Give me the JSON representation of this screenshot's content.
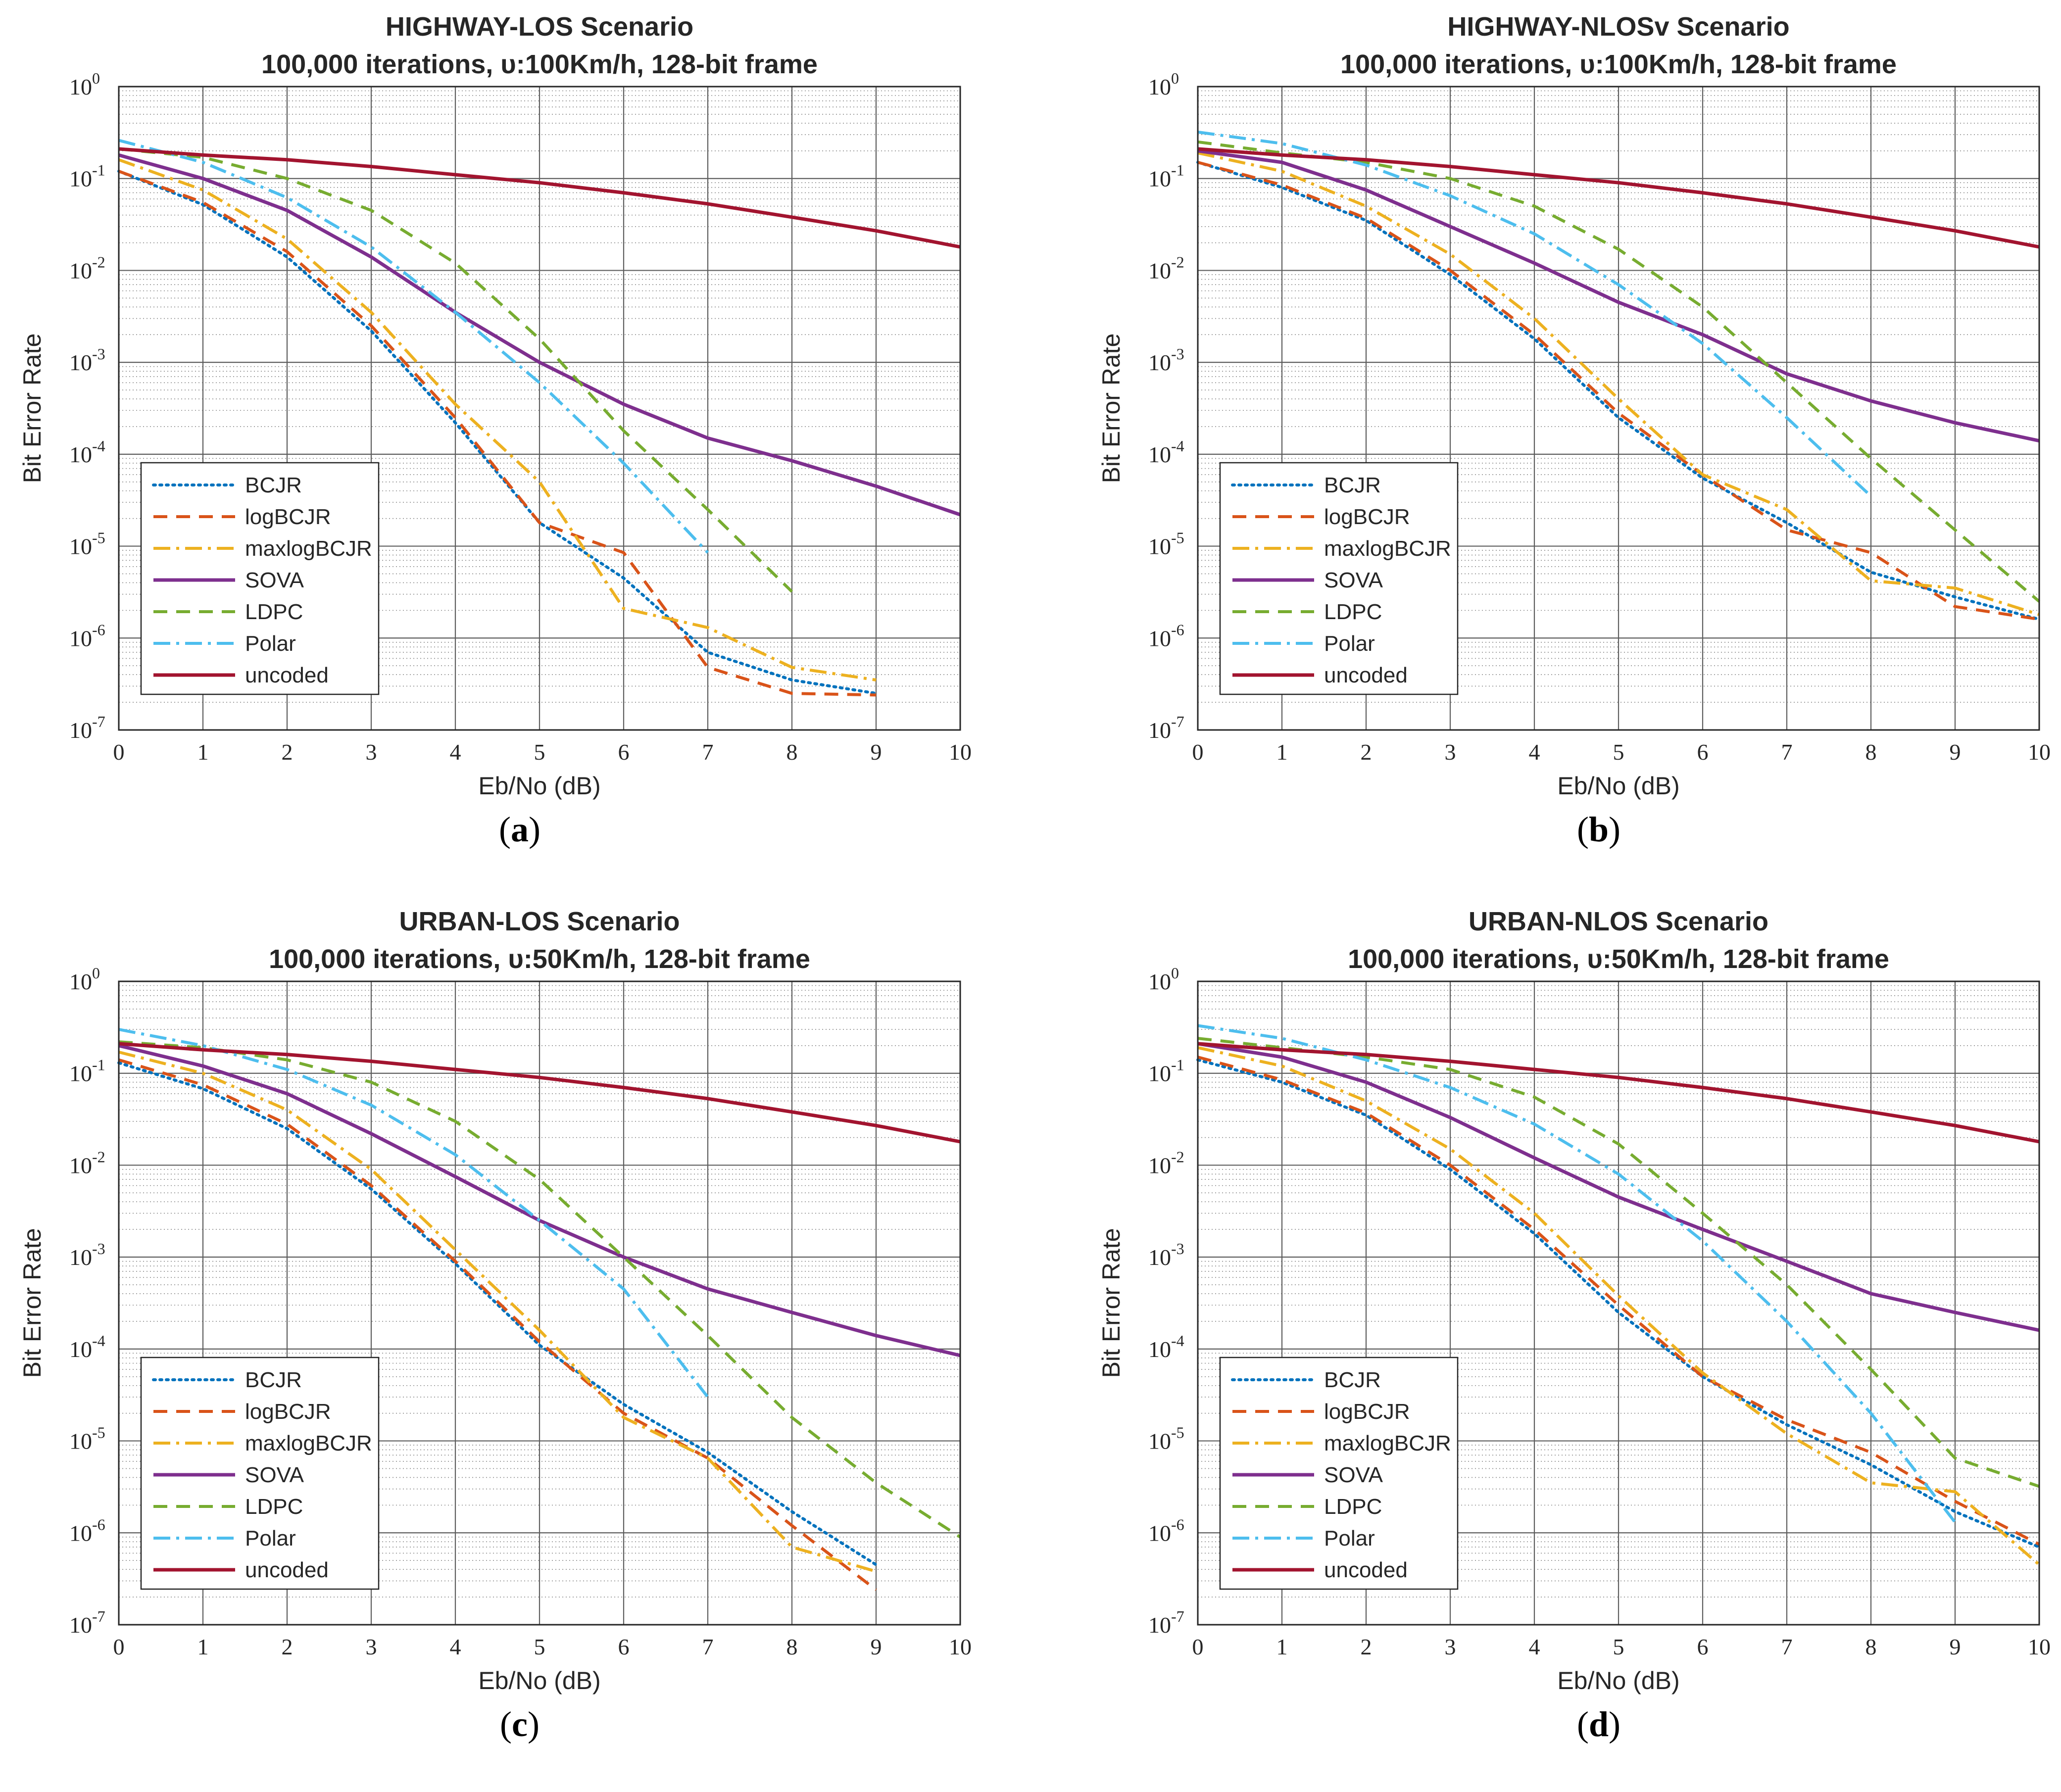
{
  "figure": {
    "x_label": "Eb/No (dB)",
    "y_label": "Bit Error Rate",
    "x_ticks": [
      "0",
      "1",
      "2",
      "3",
      "4",
      "5",
      "6",
      "7",
      "8",
      "9",
      "10"
    ],
    "y_ticks": [
      {
        "base": "10",
        "exp": "0"
      },
      {
        "base": "10",
        "exp": "-1"
      },
      {
        "base": "10",
        "exp": "-2"
      },
      {
        "base": "10",
        "exp": "-3"
      },
      {
        "base": "10",
        "exp": "-4"
      },
      {
        "base": "10",
        "exp": "-5"
      },
      {
        "base": "10",
        "exp": "-6"
      },
      {
        "base": "10",
        "exp": "-7"
      }
    ],
    "colors": {
      "BCJR": "#0072BD",
      "logBCJR": "#D95319",
      "maxlogBCJR": "#EDB120",
      "SOVA": "#7E2F8E",
      "LDPC": "#77AC30",
      "Polar": "#4DBEEE",
      "uncoded": "#A2142F"
    },
    "line_styles": {
      "BCJR": "dotted",
      "logBCJR": "dashed",
      "maxlogBCJR": "dash-dot",
      "SOVA": "solid",
      "LDPC": "dashed",
      "Polar": "dash-dot",
      "uncoded": "solid"
    }
  },
  "chart_data": [
    {
      "type": "line",
      "panel": "a",
      "caption": {
        "open": "(",
        "letter": "a",
        "close": ")"
      },
      "title": "HIGHWAY-LOS Scenario",
      "subtitle": "100,000 iterations,  υ:100Km/h, 128-bit frame",
      "xlabel": "Eb/No (dB)",
      "ylabel": "Bit Error Rate",
      "xlim": [
        0,
        10
      ],
      "ylim": [
        1e-07,
        1
      ],
      "yscale": "log",
      "grid": true,
      "legend_position": "lower-left",
      "series": [
        {
          "name": "BCJR",
          "x": [
            0,
            1,
            2,
            3,
            4,
            5,
            6,
            7,
            8,
            9
          ],
          "y": [
            0.12,
            0.052,
            0.014,
            0.0022,
            0.00022,
            1.8e-05,
            4.5e-06,
            7e-07,
            3.5e-07,
            2.5e-07
          ]
        },
        {
          "name": "logBCJR",
          "x": [
            0,
            1,
            2,
            3,
            4,
            5,
            6,
            7,
            8,
            9
          ],
          "y": [
            0.12,
            0.055,
            0.016,
            0.0025,
            0.00025,
            1.8e-05,
            8.5e-06,
            4.8e-07,
            2.5e-07,
            2.4e-07
          ]
        },
        {
          "name": "maxlogBCJR",
          "x": [
            0,
            1,
            2,
            3,
            4,
            5,
            6,
            7,
            8,
            9
          ],
          "y": [
            0.16,
            0.075,
            0.022,
            0.0035,
            0.00035,
            5e-05,
            2.1e-06,
            1.3e-06,
            4.8e-07,
            3.5e-07
          ]
        },
        {
          "name": "SOVA",
          "x": [
            0,
            1,
            2,
            3,
            4,
            5,
            6,
            7,
            8,
            9,
            10
          ],
          "y": [
            0.18,
            0.1,
            0.045,
            0.014,
            0.0035,
            0.001,
            0.00035,
            0.00015,
            8.5e-05,
            4.5e-05,
            2.2e-05
          ]
        },
        {
          "name": "LDPC",
          "x": [
            0,
            1,
            2,
            3,
            4,
            5,
            6,
            7,
            8
          ],
          "y": [
            0.21,
            0.17,
            0.1,
            0.045,
            0.012,
            0.0018,
            0.00018,
            2.5e-05,
            3.2e-06
          ]
        },
        {
          "name": "Polar",
          "x": [
            0,
            1,
            2,
            3,
            4,
            5,
            6,
            7
          ],
          "y": [
            0.26,
            0.15,
            0.062,
            0.018,
            0.0035,
            0.0006,
            8e-05,
            8.5e-06
          ]
        },
        {
          "name": "uncoded",
          "x": [
            0,
            1,
            2,
            3,
            4,
            5,
            6,
            7,
            8,
            9,
            10
          ],
          "y": [
            0.21,
            0.18,
            0.16,
            0.135,
            0.11,
            0.09,
            0.07,
            0.053,
            0.038,
            0.027,
            0.018
          ]
        }
      ]
    },
    {
      "type": "line",
      "panel": "b",
      "caption": {
        "open": "(",
        "letter": "b",
        "close": ")"
      },
      "title": "HIGHWAY-NLOSv Scenario",
      "subtitle": "100,000 iterations,  υ:100Km/h, 128-bit frame",
      "xlabel": "Eb/No (dB)",
      "ylabel": "Bit Error Rate",
      "xlim": [
        0,
        10
      ],
      "ylim": [
        1e-07,
        1
      ],
      "yscale": "log",
      "grid": true,
      "legend_position": "lower-left",
      "series": [
        {
          "name": "BCJR",
          "x": [
            0,
            1,
            2,
            3,
            4,
            5,
            6,
            7,
            8,
            9,
            10
          ],
          "y": [
            0.15,
            0.08,
            0.035,
            0.009,
            0.0018,
            0.00025,
            5.5e-05,
            1.8e-05,
            5.2e-06,
            2.8e-06,
            1.6e-06
          ]
        },
        {
          "name": "logBCJR",
          "x": [
            0,
            1,
            2,
            3,
            4,
            5,
            6,
            7,
            8,
            9,
            10
          ],
          "y": [
            0.15,
            0.085,
            0.037,
            0.01,
            0.002,
            0.00028,
            6e-05,
            1.5e-05,
            8.5e-06,
            2.2e-06,
            1.6e-06
          ]
        },
        {
          "name": "maxlogBCJR",
          "x": [
            0,
            1,
            2,
            3,
            4,
            5,
            6,
            7,
            8,
            9,
            10
          ],
          "y": [
            0.19,
            0.12,
            0.05,
            0.015,
            0.003,
            0.0004,
            6e-05,
            2.5e-05,
            4.2e-06,
            3.5e-06,
            1.8e-06
          ]
        },
        {
          "name": "SOVA",
          "x": [
            0,
            1,
            2,
            3,
            4,
            5,
            6,
            7,
            8,
            9,
            10
          ],
          "y": [
            0.2,
            0.15,
            0.075,
            0.03,
            0.012,
            0.0045,
            0.002,
            0.00075,
            0.00038,
            0.00022,
            0.00014
          ]
        },
        {
          "name": "LDPC",
          "x": [
            0,
            1,
            2,
            3,
            4,
            5,
            6,
            7,
            8,
            9,
            10
          ],
          "y": [
            0.25,
            0.19,
            0.15,
            0.1,
            0.05,
            0.017,
            0.004,
            0.0006,
            9e-05,
            1.5e-05,
            2.5e-06
          ]
        },
        {
          "name": "Polar",
          "x": [
            0,
            1,
            2,
            3,
            4,
            5,
            6,
            7,
            8
          ],
          "y": [
            0.32,
            0.24,
            0.14,
            0.065,
            0.025,
            0.007,
            0.0016,
            0.00025,
            3.5e-05
          ]
        },
        {
          "name": "uncoded",
          "x": [
            0,
            1,
            2,
            3,
            4,
            5,
            6,
            7,
            8,
            9,
            10
          ],
          "y": [
            0.21,
            0.18,
            0.16,
            0.135,
            0.11,
            0.09,
            0.07,
            0.053,
            0.038,
            0.027,
            0.018
          ]
        }
      ]
    },
    {
      "type": "line",
      "panel": "c",
      "caption": {
        "open": "(",
        "letter": "c",
        "close": ")"
      },
      "title": "URBAN-LOS Scenario",
      "subtitle": "100,000 iterations,  υ:50Km/h, 128-bit frame",
      "xlabel": "Eb/No (dB)",
      "ylabel": "Bit Error Rate",
      "xlim": [
        0,
        10
      ],
      "ylim": [
        1e-07,
        1
      ],
      "yscale": "log",
      "grid": true,
      "legend_position": "lower-left",
      "series": [
        {
          "name": "BCJR",
          "x": [
            0,
            1,
            2,
            3,
            4,
            5,
            6,
            7,
            8,
            9
          ],
          "y": [
            0.13,
            0.068,
            0.025,
            0.0055,
            0.00085,
            0.00011,
            2.5e-05,
            7.5e-06,
            1.7e-06,
            4.5e-07
          ]
        },
        {
          "name": "logBCJR",
          "x": [
            0,
            1,
            2,
            3,
            4,
            5,
            6,
            7,
            8,
            9
          ],
          "y": [
            0.14,
            0.075,
            0.028,
            0.006,
            0.0009,
            0.00012,
            2e-05,
            6.5e-06,
            1.2e-06,
            2.4e-07
          ]
        },
        {
          "name": "maxlogBCJR",
          "x": [
            0,
            1,
            2,
            3,
            4,
            5,
            6,
            7,
            8,
            9
          ],
          "y": [
            0.17,
            0.1,
            0.04,
            0.009,
            0.0012,
            0.00016,
            1.8e-05,
            6.5e-06,
            7e-07,
            3.8e-07
          ]
        },
        {
          "name": "SOVA",
          "x": [
            0,
            1,
            2,
            3,
            4,
            5,
            6,
            7,
            8,
            9,
            10
          ],
          "y": [
            0.2,
            0.12,
            0.06,
            0.022,
            0.0075,
            0.0025,
            0.001,
            0.00045,
            0.00025,
            0.00014,
            8.5e-05
          ]
        },
        {
          "name": "LDPC",
          "x": [
            0,
            1,
            2,
            3,
            4,
            5,
            6,
            7,
            8,
            9,
            10
          ],
          "y": [
            0.22,
            0.19,
            0.14,
            0.08,
            0.03,
            0.007,
            0.001,
            0.00014,
            1.8e-05,
            3.5e-06,
            9e-07
          ]
        },
        {
          "name": "Polar",
          "x": [
            0,
            1,
            2,
            3,
            4,
            5,
            6,
            7
          ],
          "y": [
            0.3,
            0.2,
            0.11,
            0.045,
            0.013,
            0.0025,
            0.00045,
            3e-05
          ]
        },
        {
          "name": "uncoded",
          "x": [
            0,
            1,
            2,
            3,
            4,
            5,
            6,
            7,
            8,
            9,
            10
          ],
          "y": [
            0.21,
            0.18,
            0.16,
            0.135,
            0.11,
            0.09,
            0.07,
            0.053,
            0.038,
            0.027,
            0.018
          ]
        }
      ]
    },
    {
      "type": "line",
      "panel": "d",
      "caption": {
        "open": "(",
        "letter": "d",
        "close": ")"
      },
      "title": "URBAN-NLOS Scenario",
      "subtitle": "100,000 iterations,  υ:50Km/h, 128-bit frame",
      "xlabel": "Eb/No (dB)",
      "ylabel": "Bit Error Rate",
      "xlim": [
        0,
        10
      ],
      "ylim": [
        1e-07,
        1
      ],
      "yscale": "log",
      "grid": true,
      "legend_position": "lower-left",
      "series": [
        {
          "name": "BCJR",
          "x": [
            0,
            1,
            2,
            3,
            4,
            5,
            6,
            7,
            8,
            9,
            10
          ],
          "y": [
            0.14,
            0.08,
            0.035,
            0.009,
            0.0018,
            0.00025,
            5e-05,
            1.5e-05,
            5.5e-06,
            1.7e-06,
            7e-07
          ]
        },
        {
          "name": "logBCJR",
          "x": [
            0,
            1,
            2,
            3,
            4,
            5,
            6,
            7,
            8,
            9,
            10
          ],
          "y": [
            0.15,
            0.085,
            0.037,
            0.01,
            0.002,
            0.0003,
            5e-05,
            1.7e-05,
            7.5e-06,
            2.2e-06,
            7.5e-07
          ]
        },
        {
          "name": "maxlogBCJR",
          "x": [
            0,
            1,
            2,
            3,
            4,
            5,
            6,
            7,
            8,
            9,
            10
          ],
          "y": [
            0.19,
            0.12,
            0.05,
            0.015,
            0.003,
            0.00038,
            5.5e-05,
            1.2e-05,
            3.5e-06,
            2.8e-06,
            4.5e-07
          ]
        },
        {
          "name": "SOVA",
          "x": [
            0,
            1,
            2,
            3,
            4,
            5,
            6,
            7,
            8,
            9,
            10
          ],
          "y": [
            0.21,
            0.15,
            0.08,
            0.033,
            0.012,
            0.0045,
            0.002,
            0.0009,
            0.0004,
            0.00025,
            0.00016
          ]
        },
        {
          "name": "LDPC",
          "x": [
            0,
            1,
            2,
            3,
            4,
            5,
            6,
            7,
            8,
            9,
            10
          ],
          "y": [
            0.24,
            0.19,
            0.15,
            0.11,
            0.055,
            0.017,
            0.003,
            0.0005,
            6e-05,
            6.5e-06,
            3.2e-06
          ]
        },
        {
          "name": "Polar",
          "x": [
            0,
            1,
            2,
            3,
            4,
            5,
            6,
            7,
            8,
            9
          ],
          "y": [
            0.33,
            0.24,
            0.14,
            0.07,
            0.028,
            0.008,
            0.0015,
            0.0002,
            2e-05,
            1.3e-06
          ]
        },
        {
          "name": "uncoded",
          "x": [
            0,
            1,
            2,
            3,
            4,
            5,
            6,
            7,
            8,
            9,
            10
          ],
          "y": [
            0.21,
            0.18,
            0.16,
            0.135,
            0.11,
            0.09,
            0.07,
            0.053,
            0.038,
            0.027,
            0.018
          ]
        }
      ]
    }
  ]
}
